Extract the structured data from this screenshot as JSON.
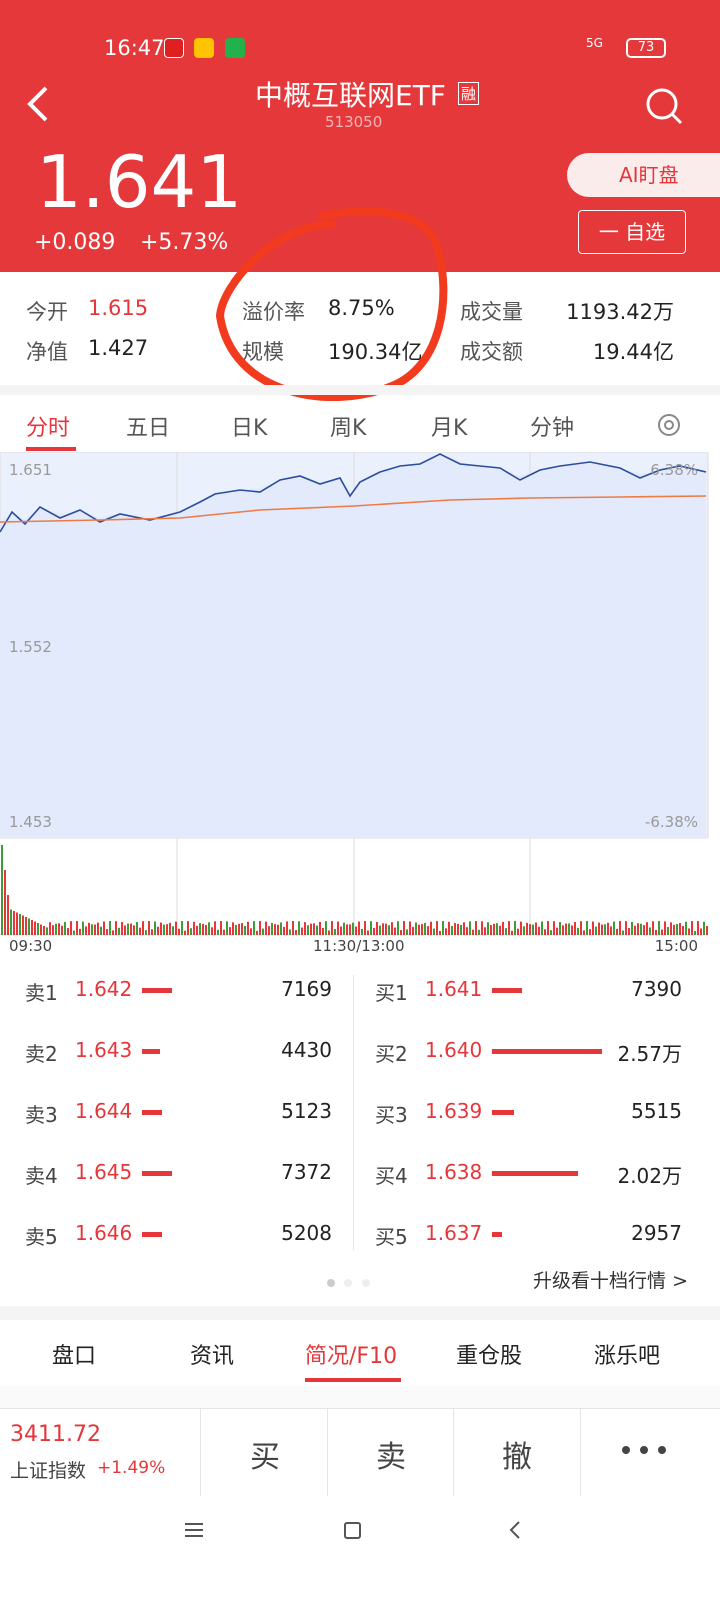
{
  "status_bar": {
    "time": "16:47",
    "network": "5G",
    "battery": "73"
  },
  "header": {
    "title": "中概互联网ETF",
    "badge": "融",
    "code": "513050",
    "ai_button": "AI盯盘",
    "watch_button": "一 自选"
  },
  "quote": {
    "price": "1.641",
    "change": "+0.089",
    "change_pct": "+5.73%"
  },
  "stats": [
    {
      "label": "今开",
      "value": "1.615"
    },
    {
      "label": "溢价率",
      "value": "8.75%"
    },
    {
      "label": "成交量",
      "value": "1193.42万"
    },
    {
      "label": "净值",
      "value": "1.427"
    },
    {
      "label": "规模",
      "value": "190.34亿"
    },
    {
      "label": "成交额",
      "value": "19.44亿"
    }
  ],
  "tabs": [
    "分时",
    "五日",
    "日K",
    "周K",
    "月K",
    "分钟"
  ],
  "chart": {
    "y_labels": [
      "1.651",
      "1.552",
      "1.453"
    ],
    "pct_labels": [
      "6.38%",
      "-6.38%"
    ],
    "x_labels": [
      "09:30",
      "11:30/13:00",
      "15:00"
    ]
  },
  "sell": [
    {
      "label": "卖1",
      "price": "1.642",
      "volume": "7169"
    },
    {
      "label": "卖2",
      "price": "1.643",
      "volume": "4430"
    },
    {
      "label": "卖3",
      "price": "1.644",
      "volume": "5123"
    },
    {
      "label": "卖4",
      "price": "1.645",
      "volume": "7372"
    },
    {
      "label": "卖5",
      "price": "1.646",
      "volume": "5208"
    }
  ],
  "buy": [
    {
      "label": "买1",
      "price": "1.641",
      "volume": "7390"
    },
    {
      "label": "买2",
      "price": "1.640",
      "volume": "2.57万"
    },
    {
      "label": "买3",
      "price": "1.639",
      "volume": "5515"
    },
    {
      "label": "买4",
      "price": "1.638",
      "volume": "2.02万"
    },
    {
      "label": "买5",
      "price": "1.637",
      "volume": "2957"
    }
  ],
  "more_link": "升级看十档行情 >",
  "bottom_tabs": [
    "盘口",
    "资讯",
    "简况/F10",
    "重仓股",
    "涨乐吧"
  ],
  "index": {
    "value": "3411.72",
    "name": "上证指数",
    "change": "+1.49%"
  },
  "actions": [
    "买",
    "卖",
    "撤"
  ]
}
